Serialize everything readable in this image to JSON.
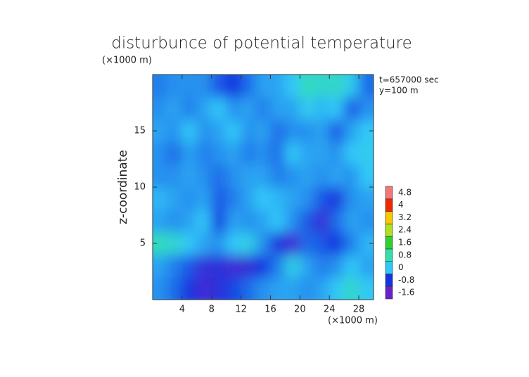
{
  "chart_data": {
    "type": "contour",
    "title": "disturbunce of potential temperature",
    "ylabel": "z-coordinate",
    "yunit": "(×1000 m)",
    "xunit": "(×1000 m)",
    "annotations": [
      "t=657000 sec",
      "y=100 m"
    ],
    "xlim": [
      0,
      30
    ],
    "ylim": [
      0,
      20
    ],
    "xticks": [
      4,
      8,
      12,
      16,
      20,
      24,
      28
    ],
    "yticks": [
      5,
      10,
      15
    ],
    "xbins": [
      0,
      2,
      4,
      6,
      8,
      10,
      12,
      14,
      16,
      18,
      20,
      22,
      24,
      26,
      28,
      30
    ],
    "ybins": [
      0,
      2,
      4,
      6,
      8,
      10,
      12,
      14,
      16,
      18,
      20
    ],
    "z": [
      [
        -0.3,
        -0.5,
        -0.8,
        -1.2,
        -1.0,
        -0.7,
        -0.5,
        -0.3,
        -0.2,
        -0.2,
        -0.3,
        -0.2,
        0,
        0.5,
        0
      ],
      [
        -0.2,
        -0.4,
        -0.6,
        -1.1,
        -1.0,
        -1.2,
        -1.1,
        -0.8,
        -0.4,
        0.2,
        -0.2,
        -0.4,
        -0.3,
        0,
        -0.2
      ],
      [
        0.6,
        0.4,
        0,
        -0.2,
        -0.3,
        0,
        0.2,
        -0.3,
        -0.9,
        -1.2,
        -0.5,
        -0.6,
        -0.8,
        -0.4,
        -0.1
      ],
      [
        -0.2,
        -0.3,
        -0.2,
        0,
        -0.8,
        -0.2,
        -0.3,
        -0.2,
        0,
        -0.3,
        -0.6,
        -1.1,
        -0.5,
        -0.2,
        -0.3
      ],
      [
        -0.1,
        -0.2,
        -0.3,
        -0.2,
        -0.6,
        -0.4,
        -0.2,
        0,
        -0.1,
        -0.2,
        -0.3,
        -0.6,
        -0.9,
        -0.3,
        -0.2
      ],
      [
        -0.3,
        -0.3,
        -0.2,
        -0.3,
        -0.5,
        -0.3,
        -0.2,
        -0.2,
        -0.4,
        -0.3,
        -0.2,
        -0.3,
        -0.2,
        -0.3,
        0
      ],
      [
        -0.3,
        -0.5,
        -0.2,
        -0.4,
        -0.3,
        -0.2,
        -0.4,
        -0.3,
        -0.5,
        0,
        -0.2,
        -0.2,
        -0.3,
        0,
        0.1
      ],
      [
        -0.2,
        -0.3,
        0,
        -0.3,
        -0.2,
        0,
        -0.3,
        -0.2,
        -0.5,
        -0.3,
        -0.3,
        -0.2,
        -0.6,
        -0.2,
        0
      ],
      [
        -0.3,
        -0.2,
        -0.4,
        -0.2,
        0,
        -0.3,
        -0.2,
        -0.4,
        -0.2,
        -0.2,
        0.1,
        -0.1,
        0,
        -0.6,
        -0.3
      ],
      [
        -0.4,
        -0.3,
        -0.3,
        -0.3,
        -0.6,
        -0.8,
        -0.5,
        -0.2,
        -0.2,
        0,
        0.6,
        0.4,
        0.5,
        0.1,
        -0.5
      ]
    ],
    "colorbar": {
      "ticks": [
        -1.6,
        -0.8,
        0,
        0.8,
        1.6,
        2.4,
        3.2,
        4,
        4.8
      ],
      "colors": [
        "#6a22c8",
        "#1434e0",
        "#30c8f8",
        "#30e0a8",
        "#30d030",
        "#b0e020",
        "#f8c800",
        "#f02800",
        "#f07878"
      ]
    }
  }
}
